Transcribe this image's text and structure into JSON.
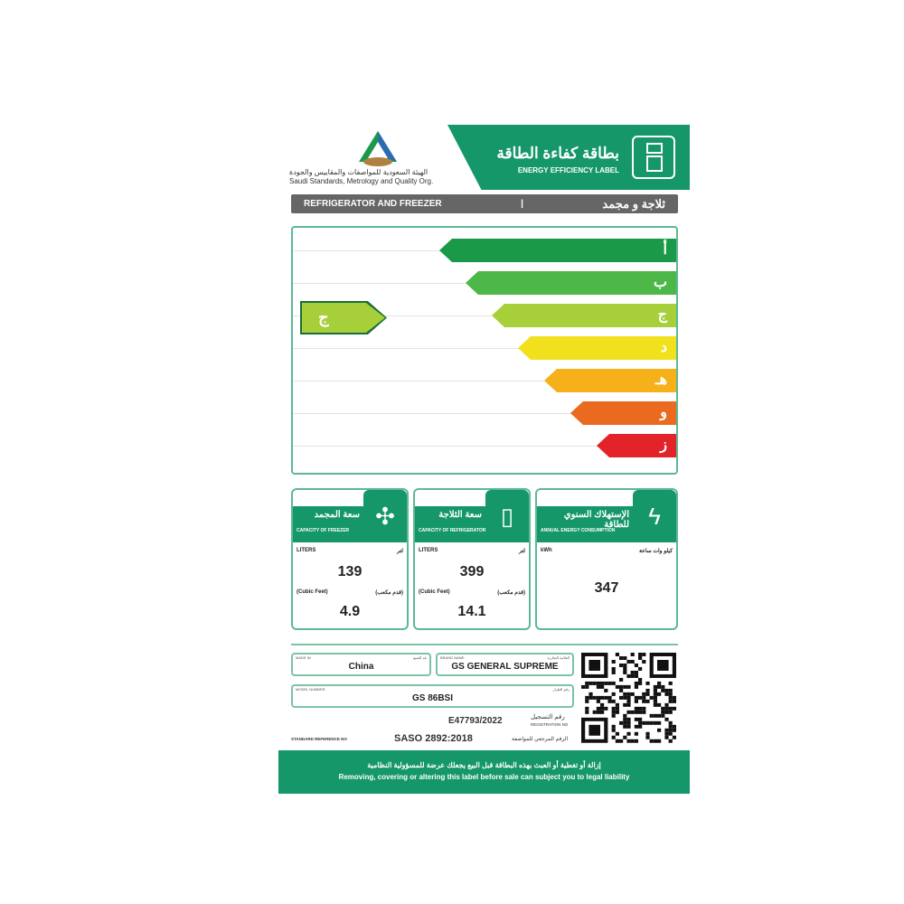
{
  "header": {
    "title_ar": "بطاقة كفاءة الطاقة",
    "title_en": "ENERGY EFFICIENCY LABEL",
    "org_ar": "الهيئة السعودية للمواصفات والمقاييس والجودة",
    "org_en": "Saudi Standards, Metrology and Quality Org.",
    "logo_text": "SASO"
  },
  "category": {
    "en": "REFRIGERATOR AND FREEZER",
    "sep": "|",
    "ar": "ثلاجة و مجمد"
  },
  "rating": {
    "classes": [
      {
        "letter": "أ",
        "color": "#1a9a48"
      },
      {
        "letter": "ب",
        "color": "#4db848"
      },
      {
        "letter": "ج",
        "color": "#a6cf3a"
      },
      {
        "letter": "د",
        "color": "#f0e11c"
      },
      {
        "letter": "هـ",
        "color": "#f6b01a"
      },
      {
        "letter": "و",
        "color": "#ea6a1f"
      },
      {
        "letter": "ز",
        "color": "#e2232a"
      }
    ],
    "current": "ج"
  },
  "freezer": {
    "title_ar": "سعة المجمد",
    "title_en": "CAPACITY OF FREEZER",
    "liters_en": "LITERS",
    "liters_ar": "لتر",
    "liters": "139",
    "cf_en": "(Cubic Feet)",
    "cf_ar": "(قدم مكعب)",
    "cubic_feet": "4.9"
  },
  "fridge": {
    "title_ar": "سعة الثلاجة",
    "title_en": "CAPACITY OF REFRIGERATOR",
    "liters_en": "LITERS",
    "liters_ar": "لتر",
    "liters": "399",
    "cf_en": "(Cubic Feet)",
    "cf_ar": "(قدم مكعب)",
    "cubic_feet": "14.1"
  },
  "energy": {
    "title_ar": "الإستهلاك السنوي للطاقة",
    "title_en": "ANNUAL ENERGY CONSUMPTION",
    "unit_en": "kWh",
    "unit_ar": "كيلو وات ساعة",
    "value": "347"
  },
  "info": {
    "country_en": "MADE IN",
    "country_ar": "بلد الصنع",
    "country": "China",
    "brand_en": "BRAND NAME",
    "brand_ar": "العلامة التجارية",
    "brand": "GS GENERAL SUPREME",
    "model_en": "MODEL NUMBER",
    "model_ar": "رقم الطراز",
    "model": "GS 86BSI",
    "reg_ar": "رقم التسجيل",
    "reg_en": "REGISTRATION NO",
    "reg": "E47793/2022",
    "std_en": "STANDARD REFERENCE NO",
    "std_ar": "الرقم المرجعي للمواصفة",
    "std": "SASO 2892:2018"
  },
  "footer": {
    "ar": "إزالة أو تغطية أو العبث بهذه البطاقة قبل البيع يجعلك عرضة للمسؤولية النظامية",
    "en": "Removing, covering or altering this label before sale can subject you to legal liability"
  },
  "colors": {
    "brand_green": "#15976a"
  }
}
